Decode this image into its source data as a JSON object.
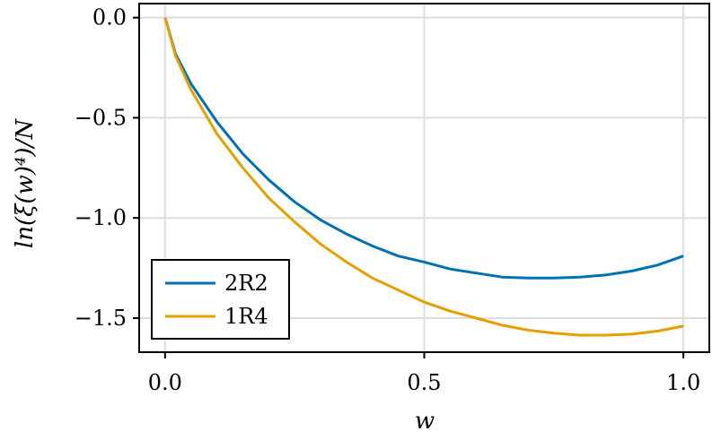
{
  "chart_data": {
    "type": "line",
    "xlabel": "w",
    "ylabel": "ln(ξ(w)⁴)/N",
    "xlim": [
      -0.05,
      1.05
    ],
    "ylim": [
      -1.67,
      0.07
    ],
    "xticks": [
      0.0,
      0.5,
      1.0
    ],
    "xtick_labels": [
      "0.0",
      "0.5",
      "1.0"
    ],
    "yticks": [
      0.0,
      -0.5,
      -1.0,
      -1.5
    ],
    "ytick_labels": [
      "0.0",
      "−0.5",
      "−1.0",
      "−1.5"
    ],
    "grid": true,
    "legend_position": "bottom-left",
    "series": [
      {
        "name": "2R2",
        "color": "#0072b2",
        "x": [
          0.0,
          0.02,
          0.05,
          0.1,
          0.15,
          0.2,
          0.25,
          0.3,
          0.35,
          0.4,
          0.45,
          0.5,
          0.55,
          0.6,
          0.65,
          0.7,
          0.75,
          0.8,
          0.85,
          0.9,
          0.95,
          1.0
        ],
        "y": [
          0.0,
          -0.18,
          -0.33,
          -0.52,
          -0.68,
          -0.81,
          -0.92,
          -1.01,
          -1.08,
          -1.14,
          -1.19,
          -1.22,
          -1.255,
          -1.275,
          -1.295,
          -1.3,
          -1.3,
          -1.295,
          -1.285,
          -1.265,
          -1.235,
          -1.19
        ]
      },
      {
        "name": "1R4",
        "color": "#e69f00",
        "x": [
          0.0,
          0.02,
          0.05,
          0.1,
          0.15,
          0.2,
          0.25,
          0.3,
          0.35,
          0.4,
          0.45,
          0.5,
          0.55,
          0.6,
          0.65,
          0.7,
          0.75,
          0.8,
          0.85,
          0.9,
          0.95,
          1.0
        ],
        "y": [
          0.0,
          -0.19,
          -0.36,
          -0.58,
          -0.75,
          -0.9,
          -1.02,
          -1.13,
          -1.22,
          -1.3,
          -1.36,
          -1.42,
          -1.465,
          -1.5,
          -1.535,
          -1.56,
          -1.575,
          -1.585,
          -1.585,
          -1.58,
          -1.565,
          -1.54
        ]
      }
    ]
  }
}
